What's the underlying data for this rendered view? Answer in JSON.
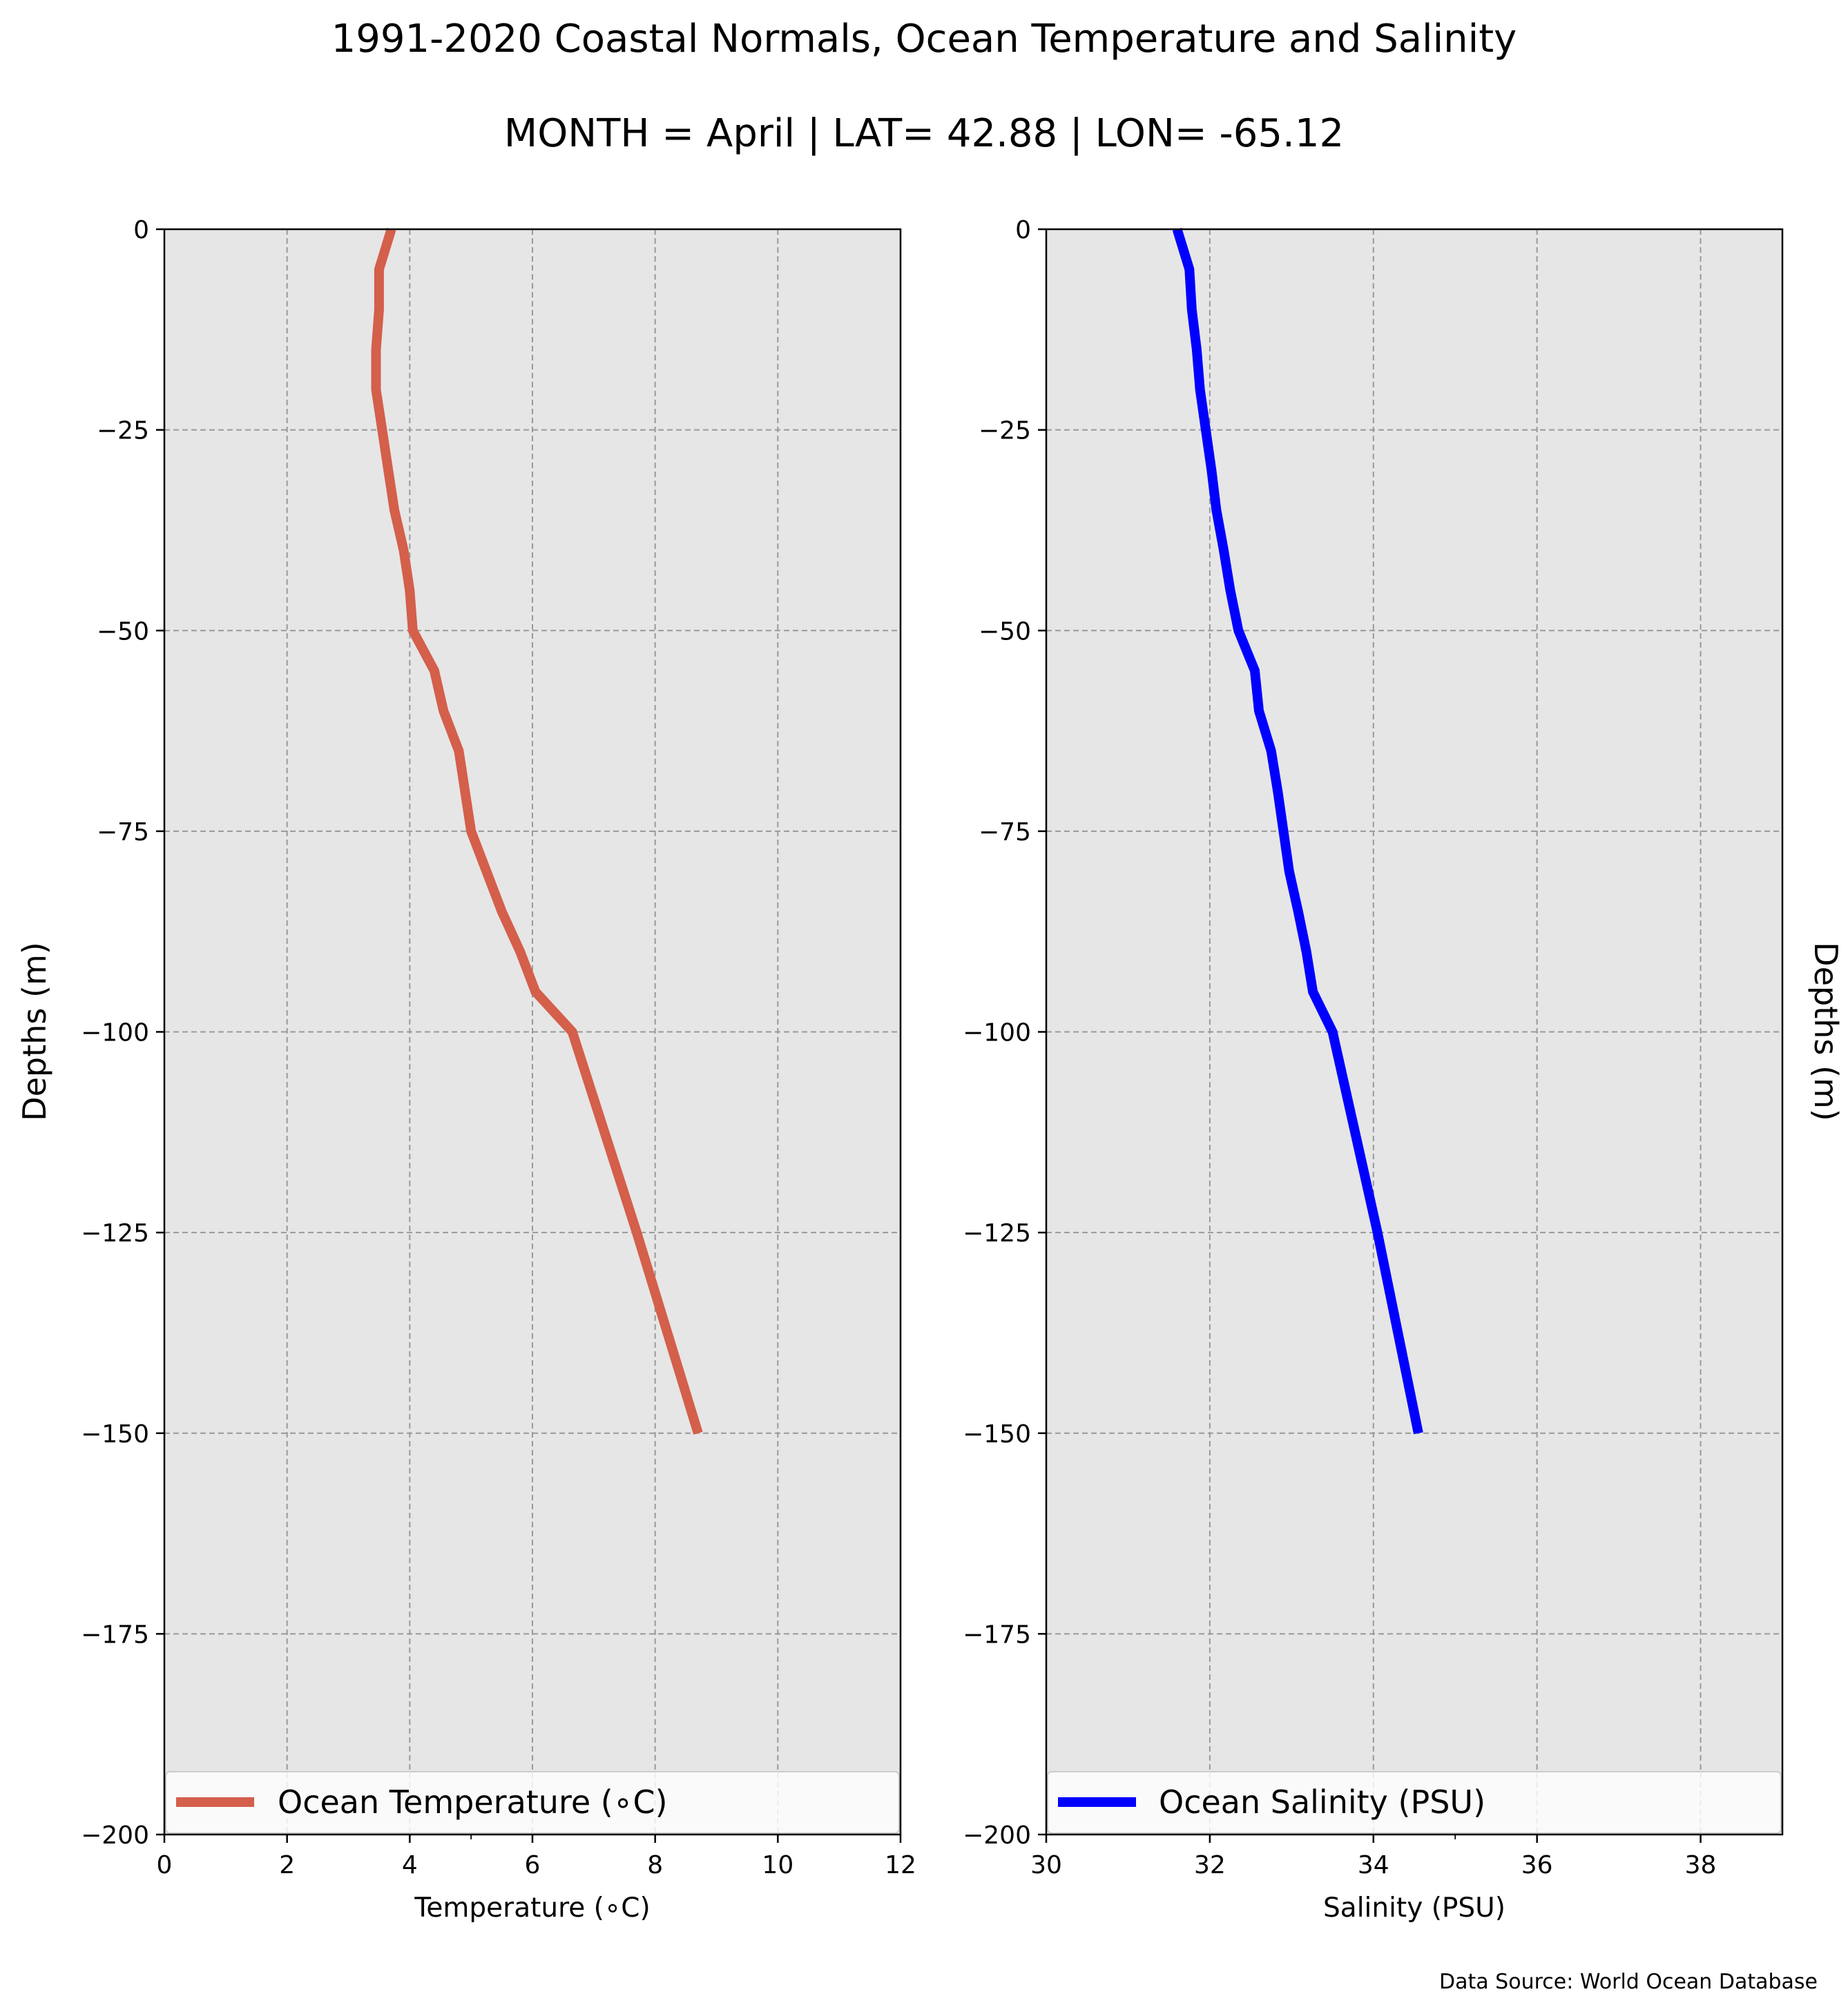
{
  "figure": {
    "title": "1991-2020 Coastal Normals, Ocean Temperature and Salinity",
    "subtitle": "MONTH = April | LAT= 42.88 | LON= -65.12",
    "source": "Data Source: World Ocean Database"
  },
  "chart_data": [
    {
      "type": "line",
      "orientation": "depth-profile",
      "xlabel": "Temperature (∘C)",
      "ylabel": "Depths (m)",
      "ylabel_side": "left",
      "xlim": [
        0,
        12
      ],
      "ylim": [
        -200,
        0
      ],
      "xticks": [
        0,
        2,
        4,
        6,
        8,
        10,
        12
      ],
      "xtick_labels": [
        "0",
        "2",
        "4",
        "6",
        "8",
        "10",
        "12"
      ],
      "x_minor_ticks": [
        5
      ],
      "yticks": [
        0,
        -25,
        -50,
        -75,
        -100,
        -125,
        -150,
        -175,
        -200
      ],
      "ytick_labels": [
        "0",
        "−25",
        "−50",
        "−75",
        "−100",
        "−125",
        "−150",
        "−175",
        "−200"
      ],
      "grid": true,
      "background": "#e6e6e6",
      "legend_position": "bottom",
      "series": [
        {
          "name": "Ocean Temperature (∘C)",
          "color": "#d45f4b",
          "points": [
            {
              "x": 3.7,
              "y": 0
            },
            {
              "x": 3.5,
              "y": -5
            },
            {
              "x": 3.5,
              "y": -10
            },
            {
              "x": 3.45,
              "y": -15
            },
            {
              "x": 3.45,
              "y": -20
            },
            {
              "x": 3.55,
              "y": -25
            },
            {
              "x": 3.65,
              "y": -30
            },
            {
              "x": 3.75,
              "y": -35
            },
            {
              "x": 3.9,
              "y": -40
            },
            {
              "x": 4.0,
              "y": -45
            },
            {
              "x": 4.05,
              "y": -50
            },
            {
              "x": 4.4,
              "y": -55
            },
            {
              "x": 4.55,
              "y": -60
            },
            {
              "x": 4.8,
              "y": -65
            },
            {
              "x": 4.9,
              "y": -70
            },
            {
              "x": 5.0,
              "y": -75
            },
            {
              "x": 5.25,
              "y": -80
            },
            {
              "x": 5.5,
              "y": -85
            },
            {
              "x": 5.8,
              "y": -90
            },
            {
              "x": 6.05,
              "y": -95
            },
            {
              "x": 6.65,
              "y": -100
            },
            {
              "x": 7.7,
              "y": -125
            },
            {
              "x": 8.7,
              "y": -150
            }
          ]
        }
      ]
    },
    {
      "type": "line",
      "orientation": "depth-profile",
      "xlabel": "Salinity (PSU)",
      "ylabel": "Depths (m)",
      "ylabel_side": "right",
      "xlim": [
        30,
        39
      ],
      "ylim": [
        -200,
        0
      ],
      "xticks": [
        30,
        32,
        34,
        36,
        38
      ],
      "xtick_labels": [
        "30",
        "32",
        "34",
        "36",
        "38"
      ],
      "x_minor_ticks": [
        35
      ],
      "yticks": [
        0,
        -25,
        -50,
        -75,
        -100,
        -125,
        -150,
        -175,
        -200
      ],
      "ytick_labels": [
        "0",
        "−25",
        "−50",
        "−75",
        "−100",
        "−125",
        "−150",
        "−175",
        "−200"
      ],
      "grid": true,
      "background": "#e6e6e6",
      "legend_position": "bottom",
      "series": [
        {
          "name": "Ocean Salinity (PSU)",
          "color": "#0000ff",
          "points": [
            {
              "x": 31.6,
              "y": 0
            },
            {
              "x": 31.75,
              "y": -5
            },
            {
              "x": 31.78,
              "y": -10
            },
            {
              "x": 31.84,
              "y": -15
            },
            {
              "x": 31.88,
              "y": -20
            },
            {
              "x": 31.95,
              "y": -25
            },
            {
              "x": 32.02,
              "y": -30
            },
            {
              "x": 32.08,
              "y": -35
            },
            {
              "x": 32.17,
              "y": -40
            },
            {
              "x": 32.25,
              "y": -45
            },
            {
              "x": 32.35,
              "y": -50
            },
            {
              "x": 32.55,
              "y": -55
            },
            {
              "x": 32.6,
              "y": -60
            },
            {
              "x": 32.75,
              "y": -65
            },
            {
              "x": 32.83,
              "y": -70
            },
            {
              "x": 32.9,
              "y": -75
            },
            {
              "x": 32.97,
              "y": -80
            },
            {
              "x": 33.08,
              "y": -85
            },
            {
              "x": 33.18,
              "y": -90
            },
            {
              "x": 33.26,
              "y": -95
            },
            {
              "x": 33.5,
              "y": -100
            },
            {
              "x": 34.05,
              "y": -125
            },
            {
              "x": 34.55,
              "y": -150
            }
          ]
        }
      ]
    }
  ]
}
